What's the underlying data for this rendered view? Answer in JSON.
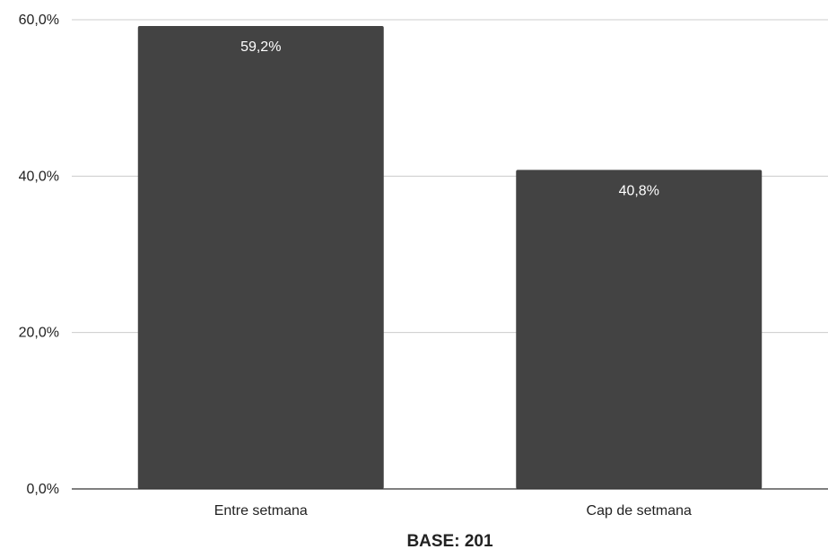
{
  "chart_data": {
    "type": "bar",
    "categories": [
      "Entre setmana",
      "Cap de setmana"
    ],
    "values": [
      59.2,
      40.8
    ],
    "data_labels": [
      "59,2%",
      "40,8%"
    ],
    "yticks": [
      0,
      20,
      40,
      60
    ],
    "ytick_labels": [
      "0,0%",
      "20,0%",
      "40,0%",
      "60,0%"
    ],
    "ylim": [
      0,
      60
    ],
    "grid": true,
    "legend": "none",
    "bar_color": "#434343",
    "footer": "BASE: 201"
  }
}
